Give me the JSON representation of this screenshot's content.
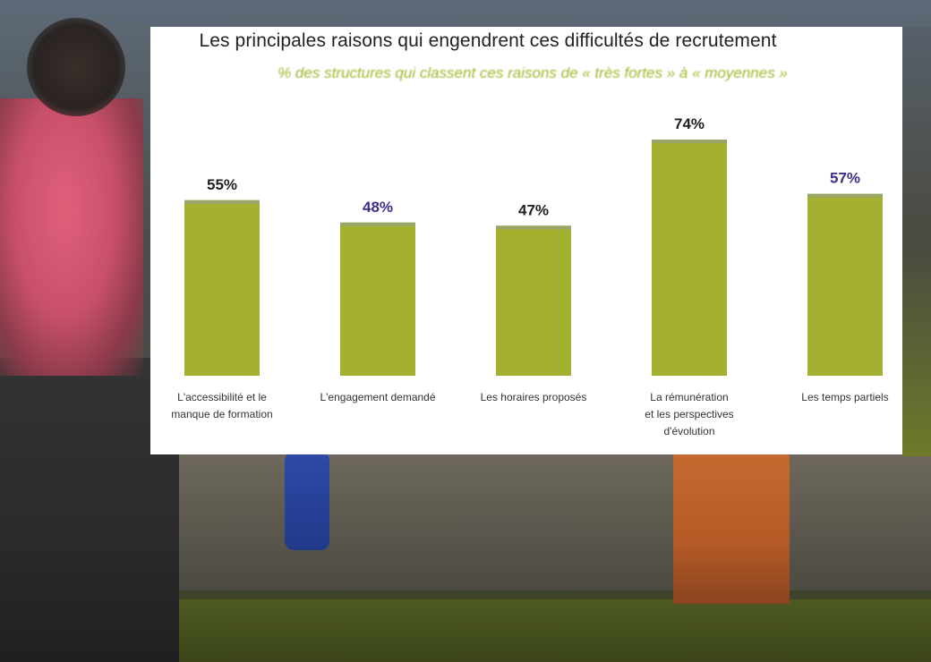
{
  "chart_data": {
    "type": "bar",
    "title": "Les principales raisons qui engendrent ces difficultés de recrutement",
    "subtitle": "% des structures qui classent ces raisons de « très fortes » à « moyennes »",
    "categories": [
      [
        "L'accessibilité et le",
        "manque de formation"
      ],
      [
        "L'engagement demandé"
      ],
      [
        "Les horaires proposés"
      ],
      [
        "La rémunération",
        "et les perspectives",
        "d'évolution"
      ],
      [
        "Les temps partiels"
      ]
    ],
    "values": [
      55,
      48,
      47,
      74,
      57
    ],
    "value_labels": [
      "55%",
      "48%",
      "47%",
      "74%",
      "57%"
    ],
    "value_label_colors": [
      "#222222",
      "#3b2f8c",
      "#222222",
      "#222222",
      "#3b2f8c"
    ],
    "bar_color": "#a4b130",
    "ylim": [
      0,
      100
    ],
    "grid": false,
    "legend": "none"
  }
}
